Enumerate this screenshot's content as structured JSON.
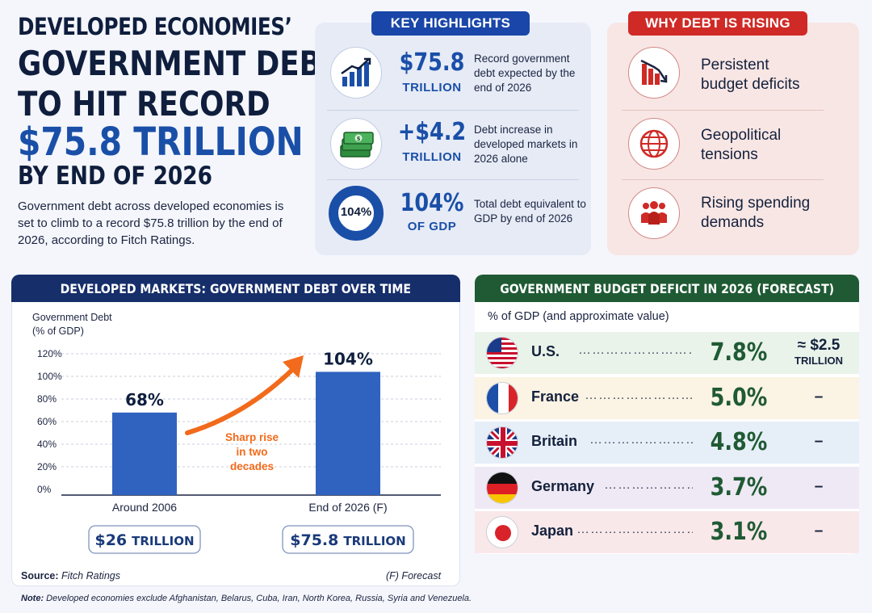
{
  "headline": {
    "kicker": "DEVELOPED ECONOMIES’",
    "line1": "GOVERNMENT DEBT",
    "line2": "TO HIT RECORD",
    "line3": "$75.8 TRILLION",
    "line4": "BY END OF 2026",
    "intro": "Government debt across developed economies is set to climb to a record $75.8 trillion by the end of 2026, according to Fitch Ratings."
  },
  "key_highlights": {
    "title": "KEY HIGHLIGHTS",
    "items": [
      {
        "value": "$75.8",
        "unit": "TRILLION",
        "desc": "Record government debt expected by the end of 2026",
        "icon": "bar-chart-growth-icon"
      },
      {
        "value": "+$4.2",
        "unit": "TRILLION",
        "desc": "Debt increase in developed markets in 2026 alone",
        "icon": "money-stack-icon"
      },
      {
        "value": "104%",
        "unit": "OF GDP",
        "desc": "Total debt equivalent to GDP by end of 2026",
        "icon": "donut-gauge-icon",
        "gauge_label": "104%"
      }
    ]
  },
  "why_rising": {
    "title": "WHY DEBT IS RISING",
    "items": [
      {
        "label_line1": "Persistent",
        "label_line2": "budget deficits",
        "icon": "declining-bars-icon"
      },
      {
        "label_line1": "Geopolitical",
        "label_line2": "tensions",
        "icon": "globe-icon"
      },
      {
        "label_line1": "Rising spending",
        "label_line2": "demands",
        "icon": "people-group-icon"
      }
    ]
  },
  "debt_chart": {
    "title": "DEVELOPED MARKETS: GOVERNMENT DEBT OVER TIME",
    "source_label": "Source:",
    "source_value": "Fitch Ratings",
    "forecast_note": "(F) Forecast",
    "annotation": [
      "Sharp rise",
      "in two",
      "decades"
    ],
    "bars": [
      {
        "category": "Around 2006",
        "value_label": "68%",
        "amount": "$26",
        "amount_unit": "TRILLION"
      },
      {
        "category": "End of 2026 (F)",
        "value_label": "104%",
        "amount": "$75.8",
        "amount_unit": "TRILLION"
      }
    ]
  },
  "chart_data": {
    "type": "bar",
    "categories": [
      "Around 2006",
      "End of 2026 (F)"
    ],
    "values": [
      68,
      104
    ],
    "ylabel": "Government Debt (% of GDP)",
    "ylabel_line1": "Government Debt",
    "ylabel_line2": "(% of GDP)",
    "yticks": [
      "0%",
      "20%",
      "40%",
      "60%",
      "80%",
      "100%",
      "120%"
    ],
    "ylim": [
      0,
      120
    ],
    "grid": true,
    "bar_color": "#2f63bf",
    "accent_color": "#f26a1b"
  },
  "deficit": {
    "title": "GOVERNMENT BUDGET DEFICIT IN 2026 (FORECAST)",
    "subtitle": "% of GDP (and approximate value)",
    "rows": [
      {
        "country": "U.S.",
        "dots": "…………………………",
        "pct": "7.8%",
        "approx_val": "≈ $2.5",
        "approx_unit": "TRILLION",
        "bg": "#e9f3ea"
      },
      {
        "country": "France",
        "dots": "………………………",
        "pct": "5.0%",
        "approx_val": "–",
        "approx_unit": "",
        "bg": "#fbf3e3"
      },
      {
        "country": "Britain",
        "dots": "………………………",
        "pct": "4.8%",
        "approx_val": "–",
        "approx_unit": "",
        "bg": "#e6eff8"
      },
      {
        "country": "Germany",
        "dots": "…………………",
        "pct": "3.7%",
        "approx_val": "–",
        "approx_unit": "",
        "bg": "#efe9f5"
      },
      {
        "country": "Japan",
        "dots": "……………………………",
        "pct": "3.1%",
        "approx_val": "–",
        "approx_unit": "",
        "bg": "#f9e8ea"
      }
    ]
  },
  "footnote": {
    "label": "Note:",
    "text": "Developed economies exclude Afghanistan, Belarus, Cuba, Iran, North Korea, Russia, Syria and Venezuela."
  }
}
